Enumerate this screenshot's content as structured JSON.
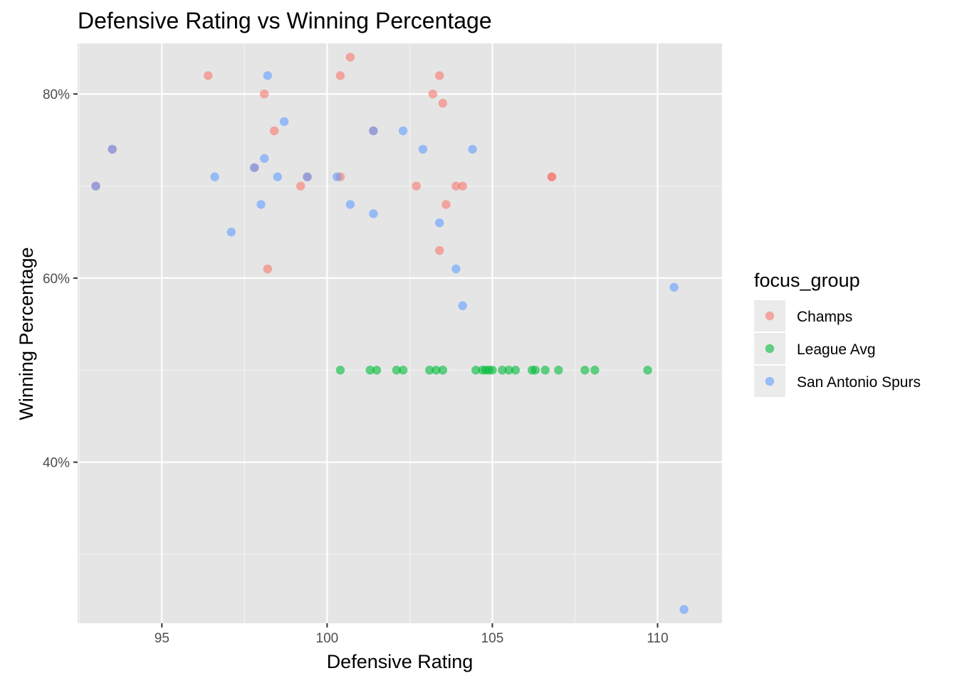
{
  "chart_data": {
    "type": "scatter",
    "title": "Defensive Rating vs Winning Percentage",
    "xlabel": "Defensive Rating",
    "ylabel": "Winning Percentage",
    "xlim": [
      92.45,
      111.95
    ],
    "ylim": [
      0.225,
      0.855
    ],
    "x_ticks": [
      95,
      100,
      105,
      110
    ],
    "x_tick_labels": [
      "95",
      "100",
      "105",
      "110"
    ],
    "x_minor_ticks": [
      92.5,
      97.5,
      102.5,
      107.5
    ],
    "y_ticks": [
      0.4,
      0.6,
      0.8
    ],
    "y_tick_labels": [
      "40%",
      "60%",
      "80%"
    ],
    "y_minor_ticks": [
      0.3,
      0.5,
      0.7
    ],
    "grid": true,
    "panel_background": "#e5e5e5",
    "legend": {
      "title": "focus_group",
      "position": "right",
      "key_background": "#ebebeb"
    },
    "series": [
      {
        "name": "Champs",
        "color": "#F8766D",
        "points": [
          [
            93.0,
            0.7
          ],
          [
            93.5,
            0.74
          ],
          [
            96.4,
            0.82
          ],
          [
            97.8,
            0.72
          ],
          [
            98.1,
            0.8
          ],
          [
            98.4,
            0.76
          ],
          [
            98.2,
            0.61
          ],
          [
            99.2,
            0.7
          ],
          [
            99.4,
            0.71
          ],
          [
            100.4,
            0.82
          ],
          [
            100.7,
            0.84
          ],
          [
            100.4,
            0.71
          ],
          [
            101.4,
            0.76
          ],
          [
            102.7,
            0.7
          ],
          [
            103.2,
            0.8
          ],
          [
            103.4,
            0.82
          ],
          [
            103.5,
            0.79
          ],
          [
            103.9,
            0.7
          ],
          [
            104.1,
            0.7
          ],
          [
            103.6,
            0.68
          ],
          [
            103.4,
            0.63
          ],
          [
            106.8,
            0.71
          ],
          [
            106.8,
            0.71
          ]
        ]
      },
      {
        "name": "League Avg",
        "color": "#00BA38",
        "points": [
          [
            100.4,
            0.5
          ],
          [
            101.3,
            0.5
          ],
          [
            101.5,
            0.5
          ],
          [
            102.1,
            0.5
          ],
          [
            102.3,
            0.5
          ],
          [
            103.1,
            0.5
          ],
          [
            103.3,
            0.5
          ],
          [
            103.5,
            0.5
          ],
          [
            104.5,
            0.5
          ],
          [
            104.7,
            0.5
          ],
          [
            104.8,
            0.5
          ],
          [
            104.9,
            0.5
          ],
          [
            105.0,
            0.5
          ],
          [
            105.3,
            0.5
          ],
          [
            105.5,
            0.5
          ],
          [
            105.7,
            0.5
          ],
          [
            106.2,
            0.5
          ],
          [
            106.3,
            0.5
          ],
          [
            106.6,
            0.5
          ],
          [
            107.0,
            0.5
          ],
          [
            107.8,
            0.5
          ],
          [
            108.1,
            0.5
          ],
          [
            109.7,
            0.5
          ]
        ]
      },
      {
        "name": "San Antonio Spurs",
        "color": "#619CFF",
        "points": [
          [
            93.0,
            0.7
          ],
          [
            93.5,
            0.74
          ],
          [
            96.6,
            0.71
          ],
          [
            97.1,
            0.65
          ],
          [
            97.8,
            0.72
          ],
          [
            98.0,
            0.68
          ],
          [
            98.1,
            0.73
          ],
          [
            98.2,
            0.82
          ],
          [
            98.5,
            0.71
          ],
          [
            98.7,
            0.77
          ],
          [
            99.4,
            0.71
          ],
          [
            100.3,
            0.71
          ],
          [
            100.7,
            0.68
          ],
          [
            101.4,
            0.76
          ],
          [
            101.4,
            0.67
          ],
          [
            102.3,
            0.76
          ],
          [
            102.9,
            0.74
          ],
          [
            103.4,
            0.66
          ],
          [
            103.9,
            0.61
          ],
          [
            104.1,
            0.57
          ],
          [
            104.4,
            0.74
          ],
          [
            110.5,
            0.59
          ],
          [
            110.8,
            0.24
          ]
        ]
      }
    ]
  }
}
